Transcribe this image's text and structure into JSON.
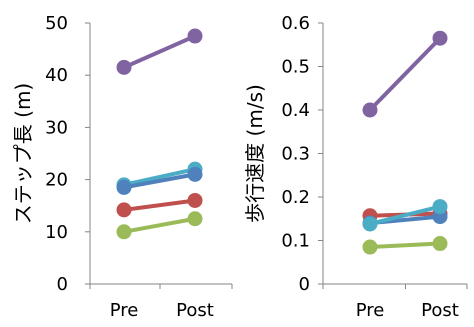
{
  "chart_data": [
    {
      "type": "line",
      "title": "",
      "ylabel": "ステップ長 (m)",
      "xlabel": "",
      "categories": [
        "Pre",
        "Post"
      ],
      "ylim": [
        0,
        50
      ],
      "yticks": [
        0,
        10,
        20,
        30,
        40,
        50
      ],
      "grid": false,
      "legend": "none",
      "series": [
        {
          "color": "#8064A2",
          "values": [
            41.5,
            47.5
          ]
        },
        {
          "color": "#4BACC6",
          "values": [
            19.0,
            22.0
          ]
        },
        {
          "color": "#4F81BD",
          "values": [
            18.5,
            21.0
          ]
        },
        {
          "color": "#C0504D",
          "values": [
            14.2,
            16.0
          ]
        },
        {
          "color": "#9BBB59",
          "values": [
            10.0,
            12.5
          ]
        }
      ]
    },
    {
      "type": "line",
      "title": "",
      "ylabel": "歩行速度 (m/s)",
      "xlabel": "",
      "categories": [
        "Pre",
        "Post"
      ],
      "ylim": [
        0,
        0.6
      ],
      "yticks": [
        "0",
        "0.1",
        "0.2",
        "0.3",
        "0.4",
        "0.5",
        "0.6"
      ],
      "grid": false,
      "legend": "none",
      "series": [
        {
          "color": "#8064A2",
          "values": [
            0.4,
            0.565
          ]
        },
        {
          "color": "#C0504D",
          "values": [
            0.157,
            0.162
          ]
        },
        {
          "color": "#4F81BD",
          "values": [
            0.14,
            0.155
          ]
        },
        {
          "color": "#4BACC6",
          "values": [
            0.138,
            0.178
          ]
        },
        {
          "color": "#9BBB59",
          "values": [
            0.085,
            0.093
          ]
        }
      ]
    }
  ]
}
